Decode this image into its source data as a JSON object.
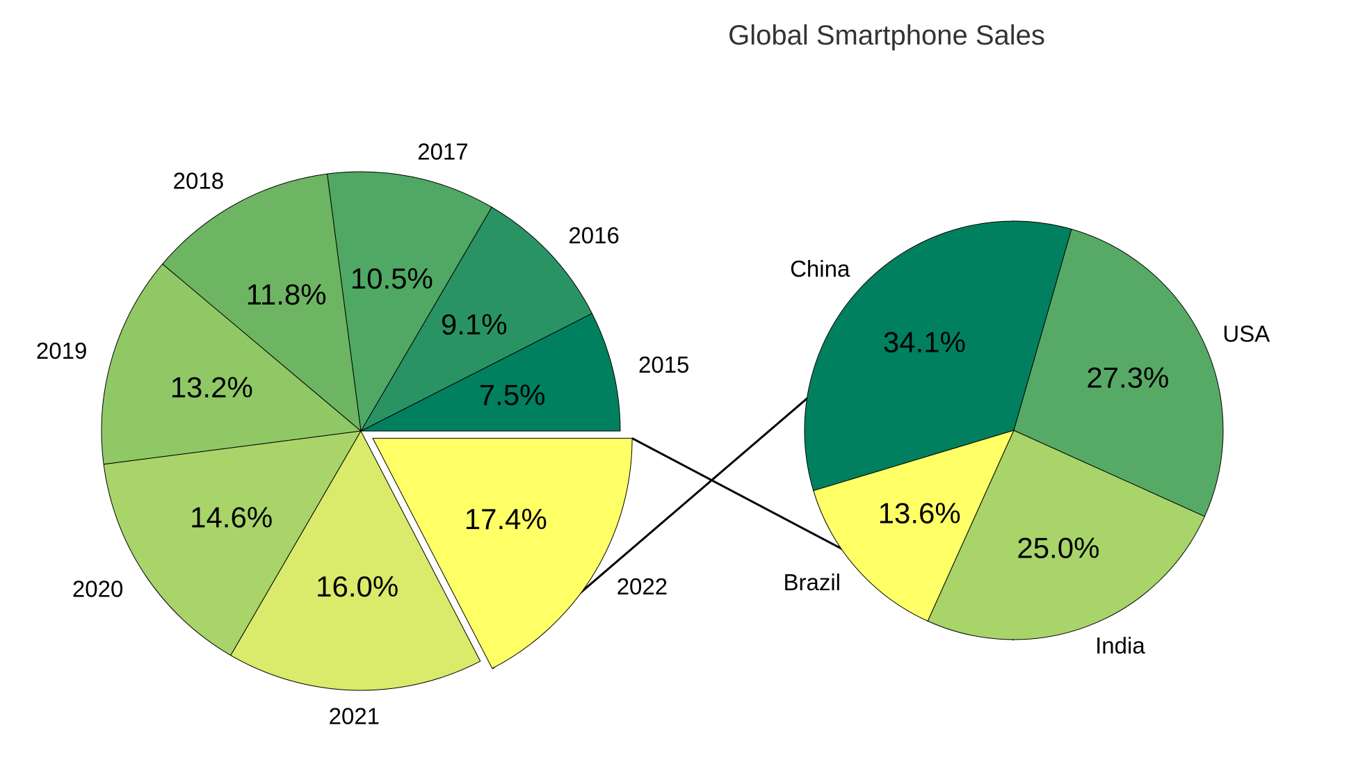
{
  "chart_data": [
    {
      "type": "pie",
      "title": "Global Smartphone Sales",
      "categories": [
        "2015",
        "2016",
        "2017",
        "2018",
        "2019",
        "2020",
        "2021",
        "2022"
      ],
      "values": [
        7.5,
        9.1,
        10.5,
        11.8,
        13.2,
        14.6,
        16.0,
        17.4
      ],
      "value_labels": [
        "7.5%",
        "9.1%",
        "10.5%",
        "11.8%",
        "13.2%",
        "14.6%",
        "16.0%",
        "17.4%"
      ],
      "colors": [
        "#00805F",
        "#2A9364",
        "#4FA863",
        "#6DB562",
        "#90C865",
        "#A8D46A",
        "#DAEA6A",
        "#FFFF66"
      ],
      "exploded": "2022",
      "edge_color": "#000000"
    },
    {
      "type": "pie",
      "categories": [
        "China",
        "Brazil",
        "India",
        "USA"
      ],
      "values": [
        34.1,
        13.6,
        25.0,
        27.3
      ],
      "value_labels": [
        "34.1%",
        "13.6%",
        "25.0%",
        "27.3%"
      ],
      "colors": [
        "#00805F",
        "#FFFF66",
        "#A8D46A",
        "#57AA66"
      ],
      "edge_color": "#000000"
    }
  ]
}
